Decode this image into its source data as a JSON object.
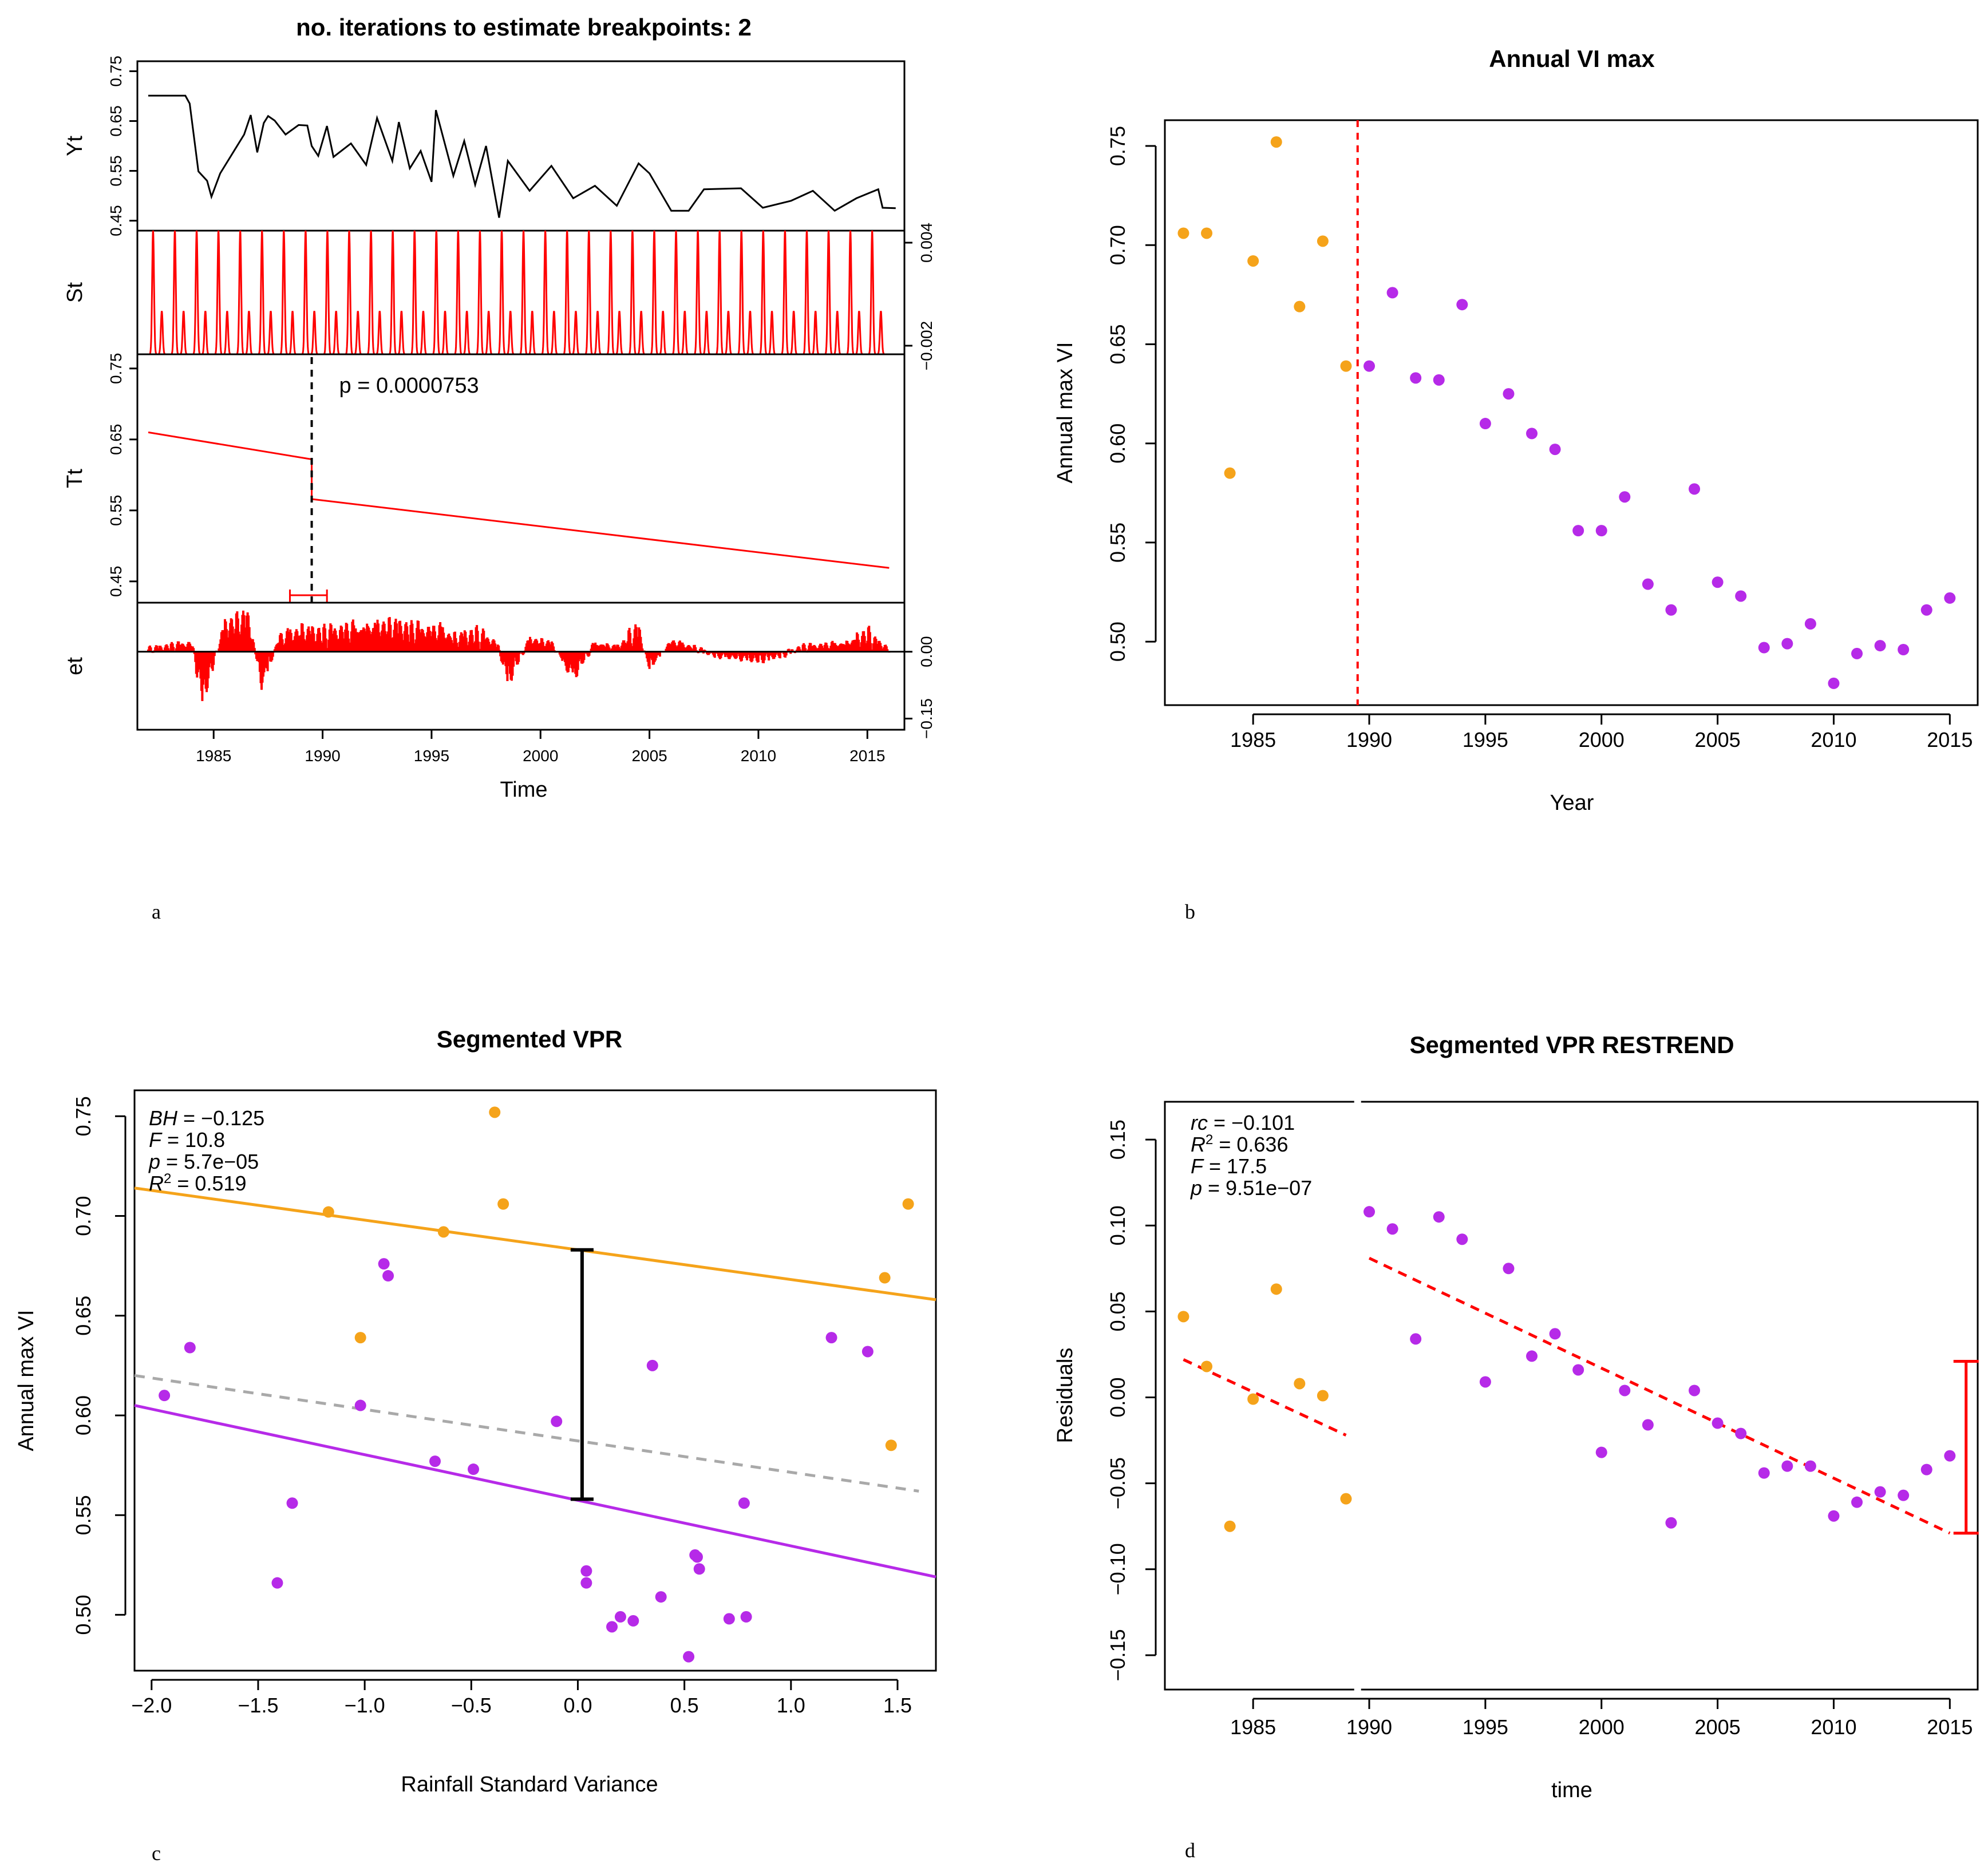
{
  "colors": {
    "pre": "#F5A31A",
    "post": "#B62AE8",
    "red": "#FF0000",
    "grey": "#A9A9A9",
    "black": "#000000"
  },
  "panel_labels": {
    "a": "a",
    "b": "b",
    "c": "c",
    "d": "d"
  },
  "chart_data": [
    {
      "id": "a",
      "type": "line",
      "title": "no. iterations to estimate breakpoints: 2",
      "xlabel": "Time",
      "xlim": [
        1981.5,
        2016.7
      ],
      "xticks": [
        1985,
        1990,
        1995,
        2000,
        2005,
        2010,
        2015
      ],
      "xtick_labels": [
        "1985",
        "1990",
        "1995",
        "2000",
        "2005",
        "2010",
        "2015"
      ],
      "breakpoint": 1989.5,
      "breakpoint_ci": [
        1988.5,
        1990.2
      ],
      "p_label": "p = 0.0000753",
      "rows": {
        "Yt": {
          "ylabel": "Yt",
          "ylim": [
            0.43,
            0.77
          ],
          "ticks": [
            0.45,
            0.55,
            0.65,
            0.75
          ],
          "tick_labels": [
            "0.45",
            "0.55",
            "0.65",
            "0.75"
          ],
          "side": "left"
        },
        "St": {
          "ylabel": "St",
          "ylim": [
            -0.0025,
            0.0047
          ],
          "ticks": [
            -0.002,
            0.004
          ],
          "tick_labels": [
            "−0.002",
            "0.004"
          ],
          "side": "right"
        },
        "Tt": {
          "ylabel": "Tt",
          "ylim": [
            0.42,
            0.77
          ],
          "ticks": [
            0.45,
            0.55,
            0.65,
            0.75
          ],
          "tick_labels": [
            "0.45",
            "0.55",
            "0.65",
            "0.75"
          ],
          "side": "left",
          "segments": [
            [
              [
                1982,
                0.66
              ],
              [
                1989.5,
                0.622
              ]
            ],
            [
              [
                1989.5,
                0.566
              ],
              [
                2016,
                0.469
              ]
            ]
          ]
        },
        "et": {
          "ylabel": "et",
          "ylim": [
            -0.175,
            0.11
          ],
          "ticks": [
            -0.15,
            0.0
          ],
          "tick_labels": [
            "−0.15",
            "0.00"
          ],
          "side": "right"
        }
      },
      "series": [
        {
          "name": "Yt",
          "x": [
            1982,
            1983.7,
            1983.9,
            1984.3,
            1984.7,
            1984.9,
            1985.3,
            1986.4,
            1986.7,
            1987,
            1987.3,
            1987.5,
            1987.8,
            1988.3,
            1988.9,
            1989.3,
            1989.5,
            1989.8,
            1990.2,
            1990.5,
            1991.3,
            1992.0,
            1992.5,
            1993.2,
            1993.5,
            1994.0,
            1994.5,
            1995.0,
            1995.2,
            1996.0,
            1996.5,
            1997.0,
            1997.5,
            1998.1,
            1998.5,
            1999.5,
            2000.5,
            2001.5,
            2002.5,
            2003.5,
            2004.5,
            2005.0,
            2006.0,
            2006.8,
            2007.5,
            2009.2,
            2010.2,
            2011.5,
            2012.5,
            2013.5,
            2014.5,
            2015.5,
            2015.7,
            2016.3
          ],
          "y": [
            0.701,
            0.701,
            0.685,
            0.549,
            0.53,
            0.498,
            0.545,
            0.623,
            0.662,
            0.587,
            0.646,
            0.66,
            0.651,
            0.623,
            0.642,
            0.641,
            0.6,
            0.58,
            0.64,
            0.578,
            0.605,
            0.562,
            0.656,
            0.57,
            0.648,
            0.555,
            0.59,
            0.528,
            0.672,
            0.54,
            0.61,
            0.522,
            0.6,
            0.456,
            0.57,
            0.51,
            0.56,
            0.495,
            0.52,
            0.48,
            0.565,
            0.545,
            0.47,
            0.47,
            0.513,
            0.515,
            0.476,
            0.49,
            0.51,
            0.47,
            0.495,
            0.513,
            0.476,
            0.475
          ]
        },
        {
          "name": "St",
          "period": 1,
          "amp_max": 0.0047,
          "amp_min": -0.0025
        },
        {
          "name": "et",
          "points": [
            [
              1982,
              0.005
            ],
            [
              1984,
              0.02
            ],
            [
              1984.5,
              -0.11
            ],
            [
              1985.5,
              0.06
            ],
            [
              1986.6,
              0.08
            ],
            [
              1987.2,
              -0.08
            ],
            [
              1988,
              0.03
            ],
            [
              1989,
              0.05
            ],
            [
              1990,
              0.04
            ],
            [
              1991,
              0.05
            ],
            [
              1992.3,
              0.06
            ],
            [
              1993.5,
              0.06
            ],
            [
              1994,
              0.05
            ],
            [
              1995.5,
              0.05
            ],
            [
              1996,
              0.03
            ],
            [
              1997,
              0.04
            ],
            [
              1998,
              0.02
            ],
            [
              1998.5,
              -0.07
            ],
            [
              1999.5,
              0.03
            ],
            [
              2000.5,
              0.02
            ],
            [
              2001.5,
              -0.06
            ],
            [
              2002.5,
              0.02
            ],
            [
              2003.5,
              0.01
            ],
            [
              2004.5,
              0.05
            ],
            [
              2005,
              -0.04
            ],
            [
              2006,
              0.025
            ],
            [
              2007,
              0.01
            ],
            [
              2008,
              -0.01
            ],
            [
              2009,
              -0.015
            ],
            [
              2010,
              -0.02
            ],
            [
              2011,
              -0.01
            ],
            [
              2012,
              0.01
            ],
            [
              2013,
              0.015
            ],
            [
              2014,
              0.02
            ],
            [
              2015,
              0.04
            ],
            [
              2016,
              0.005
            ]
          ]
        }
      ]
    },
    {
      "id": "b",
      "type": "scatter",
      "title": "Annual VI max",
      "xlabel": "Year",
      "ylabel": "Annual max VI",
      "xlim": [
        1981.2,
        2016.2
      ],
      "ylim": [
        0.468,
        0.763
      ],
      "xticks": [
        1985,
        1990,
        1995,
        2000,
        2005,
        2010,
        2015
      ],
      "xtick_labels": [
        "1985",
        "1990",
        "1995",
        "2000",
        "2005",
        "2010",
        "2015"
      ],
      "yticks": [
        0.5,
        0.55,
        0.6,
        0.65,
        0.7,
        0.75
      ],
      "ytick_labels": [
        "0.50",
        "0.55",
        "0.60",
        "0.65",
        "0.70",
        "0.75"
      ],
      "breakpoint": 1989.5,
      "pre": {
        "x": [
          1982,
          1983,
          1984,
          1985,
          1986,
          1987,
          1988,
          1989
        ],
        "y": [
          0.706,
          0.706,
          0.585,
          0.692,
          0.752,
          0.669,
          0.702,
          0.639
        ]
      },
      "post": {
        "x": [
          1990,
          1991,
          1992,
          1993,
          1994,
          1995,
          1996,
          1997,
          1998,
          1999,
          2000,
          2001,
          2002,
          2003,
          2004,
          2005,
          2006,
          2007,
          2008,
          2009,
          2010,
          2011,
          2012,
          2013,
          2014,
          2015
        ],
        "y": [
          0.639,
          0.676,
          0.633,
          0.632,
          0.67,
          0.61,
          0.625,
          0.605,
          0.597,
          0.556,
          0.556,
          0.573,
          0.529,
          0.516,
          0.577,
          0.53,
          0.523,
          0.497,
          0.499,
          0.509,
          0.479,
          0.494,
          0.498,
          0.496,
          0.516,
          0.522
        ]
      }
    },
    {
      "id": "c",
      "type": "scatter",
      "title": "Segmented VPR",
      "xlabel": "Rainfall Standard Variance",
      "ylabel": "Annual max VI",
      "xlim": [
        -2.08,
        1.68
      ],
      "ylim": [
        0.472,
        0.763
      ],
      "xticks": [
        -2.0,
        -1.5,
        -1.0,
        -0.5,
        0.0,
        0.5,
        1.0,
        1.5
      ],
      "xtick_labels": [
        "−2.0",
        "−1.5",
        "−1.0",
        "−0.5",
        "0.0",
        "0.5",
        "1.0",
        "1.5"
      ],
      "yticks": [
        0.5,
        0.55,
        0.6,
        0.65,
        0.7,
        0.75
      ],
      "ytick_labels": [
        "0.50",
        "0.55",
        "0.60",
        "0.65",
        "0.70",
        "0.75"
      ],
      "stats": {
        "bh": {
          "sym": "BH",
          "rest": " = −0.125"
        },
        "f": {
          "sym": "F",
          "rest": " = 10.8"
        },
        "p": {
          "sym": "p",
          "rest": " = 5.7e−05"
        },
        "r2": {
          "sym": "R",
          "sup": "2",
          "rest": " = 0.519"
        }
      },
      "lines": [
        {
          "name": "pre fit",
          "x": [
            -2.08,
            1.68
          ],
          "y": [
            0.714,
            0.658
          ],
          "color": "#F5A31A"
        },
        {
          "name": "post fit",
          "x": [
            -2.08,
            1.68
          ],
          "y": [
            0.605,
            0.519
          ],
          "color": "#B62AE8"
        },
        {
          "name": "combined fit",
          "x": [
            -2.08,
            1.6
          ],
          "y": [
            0.62,
            0.562
          ],
          "color": "#A9A9A9",
          "dash": true
        }
      ],
      "bracket": {
        "x": 0.02,
        "y": [
          0.558,
          0.683
        ]
      },
      "pre": {
        "x": [
          -1.17,
          -0.63,
          -0.39,
          -0.35,
          -1.02,
          1.44,
          1.47,
          1.55
        ],
        "y": [
          0.702,
          0.692,
          0.752,
          0.706,
          0.639,
          0.669,
          0.585,
          0.706
        ]
      },
      "post": {
        "x": [
          -1.94,
          -1.82,
          -1.41,
          -1.34,
          -1.02,
          -0.91,
          -0.89,
          -0.67,
          -0.49,
          -0.1,
          0.04,
          0.04,
          0.16,
          0.2,
          0.26,
          0.35,
          0.39,
          0.52,
          0.55,
          0.56,
          0.57,
          0.71,
          0.78,
          0.79,
          1.19,
          1.36
        ],
        "y": [
          0.61,
          0.634,
          0.516,
          0.556,
          0.605,
          0.676,
          0.67,
          0.577,
          0.573,
          0.597,
          0.522,
          0.516,
          0.494,
          0.499,
          0.497,
          0.625,
          0.509,
          0.479,
          0.53,
          0.529,
          0.523,
          0.498,
          0.556,
          0.499,
          0.639,
          0.632
        ]
      }
    },
    {
      "id": "d",
      "type": "scatter",
      "title": "Segmented VPR RESTREND",
      "xlabel": "time",
      "ylabel": "Residuals",
      "xlim": [
        1981.2,
        2016.2
      ],
      "ylim": [
        -0.17,
        0.172
      ],
      "xticks": [
        1985,
        1990,
        1995,
        2000,
        2005,
        2010,
        2015
      ],
      "xtick_labels": [
        "1985",
        "1990",
        "1995",
        "2000",
        "2005",
        "2010",
        "2015"
      ],
      "yticks": [
        -0.15,
        -0.1,
        -0.05,
        0.0,
        0.05,
        0.1,
        0.15
      ],
      "ytick_labels": [
        "−0.15",
        "−0.10",
        "−0.05",
        "0.00",
        "0.05",
        "0.10",
        "0.15"
      ],
      "stats": {
        "rc": {
          "sym": "rc",
          "rest": " = −0.101"
        },
        "r2": {
          "sym": "R",
          "sup": "2",
          "rest": " = 0.636"
        },
        "f": {
          "sym": "F",
          "rest": " = 17.5"
        },
        "p": {
          "sym": "p",
          "rest": " = 9.51e−07"
        }
      },
      "breakpoint": 1989.5,
      "lines": [
        {
          "name": "pre trend",
          "x": [
            1982,
            1989
          ],
          "y": [
            0.022,
            -0.022
          ],
          "color": "#FF0000",
          "dash": true
        },
        {
          "name": "post trend",
          "x": [
            1990,
            2015
          ],
          "y": [
            0.081,
            -0.079
          ],
          "color": "#FF0000",
          "dash": true
        }
      ],
      "bracket": {
        "x": 2015.7,
        "y": [
          -0.079,
          0.021
        ]
      },
      "pre": {
        "x": [
          1982,
          1983,
          1984,
          1985,
          1986,
          1987,
          1988,
          1989
        ],
        "y": [
          0.047,
          0.018,
          -0.075,
          -0.001,
          0.063,
          0.008,
          0.001,
          -0.059
        ]
      },
      "post": {
        "x": [
          1990,
          1991,
          1992,
          1993,
          1994,
          1995,
          1996,
          1997,
          1998,
          1999,
          2000,
          2001,
          2002,
          2003,
          2004,
          2005,
          2006,
          2007,
          2008,
          2009,
          2010,
          2011,
          2012,
          2013,
          2014,
          2015
        ],
        "y": [
          0.108,
          0.098,
          0.034,
          0.105,
          0.092,
          0.009,
          0.075,
          0.024,
          0.037,
          0.016,
          -0.032,
          0.004,
          -0.016,
          -0.073,
          0.004,
          -0.015,
          -0.021,
          -0.044,
          -0.04,
          -0.04,
          -0.069,
          -0.061,
          -0.055,
          -0.057,
          -0.042,
          -0.034
        ]
      }
    }
  ]
}
